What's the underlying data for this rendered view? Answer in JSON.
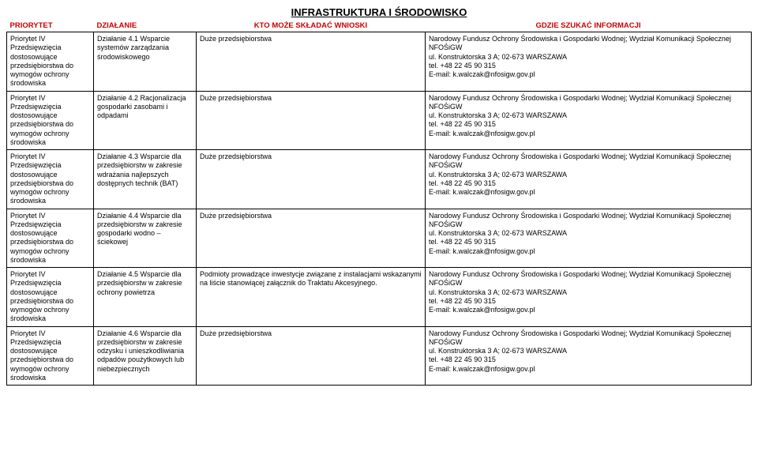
{
  "title": "INFRASTRUKTURA I ŚRODOWISKO",
  "headers": {
    "priority": "PRIORYTET",
    "action": "DZIAŁANIE",
    "who": "KTO MOŻE SKŁADAĆ WNIOSKI",
    "where": "GDZIE SZUKAĆ INFORMACJI"
  },
  "priority_text": "Priorytet IV\nPrzedsięwzięcia dostosowujące przedsiębiorstwa do wymogów ochrony środowiska",
  "contact_text": "Narodowy Fundusz Ochrony Środowiska i Gospodarki Wodnej; Wydział Komunikacji Społecznej NFOŚiGW\nul. Konstruktorska 3 A; 02-673 WARSZAWA\ntel. +48 22 45 90 315\nE-mail: k.walczak@nfosigw.gov.pl",
  "rows": [
    {
      "action": "Działanie 4.1 Wsparcie systemów zarządzania środowiskowego",
      "who": "Duże przedsiębiorstwa"
    },
    {
      "action": "Działanie 4.2 Racjonalizacja gospodarki zasobami i odpadami",
      "who": "Duże przedsiębiorstwa"
    },
    {
      "action": "Działanie 4.3 Wsparcie dla przedsiębiorstw w zakresie wdrażania najlepszych dostępnych technik (BAT)",
      "who": "Duże przedsiębiorstwa"
    },
    {
      "action": "Działanie 4.4 Wsparcie dla przedsiębiorstw w zakresie gospodarki wodno – ściekowej",
      "who": "Duże przedsiębiorstwa"
    },
    {
      "action": "Działanie 4.5 Wsparcie dla przedsiębiorstw w zakresie ochrony powietrza",
      "who": "Podmioty prowadzące inwestycje związane z instalacjami wskazanymi na liście stanowiącej załącznik do Traktatu Akcesyjnego."
    },
    {
      "action": "Działanie 4.6 Wsparcie dla przedsiębiorstw w zakresie odzysku i unieszkodliwiania odpadów poużytkowych lub niebezpiecznych",
      "who": "Duże przedsiębiorstwa"
    }
  ]
}
